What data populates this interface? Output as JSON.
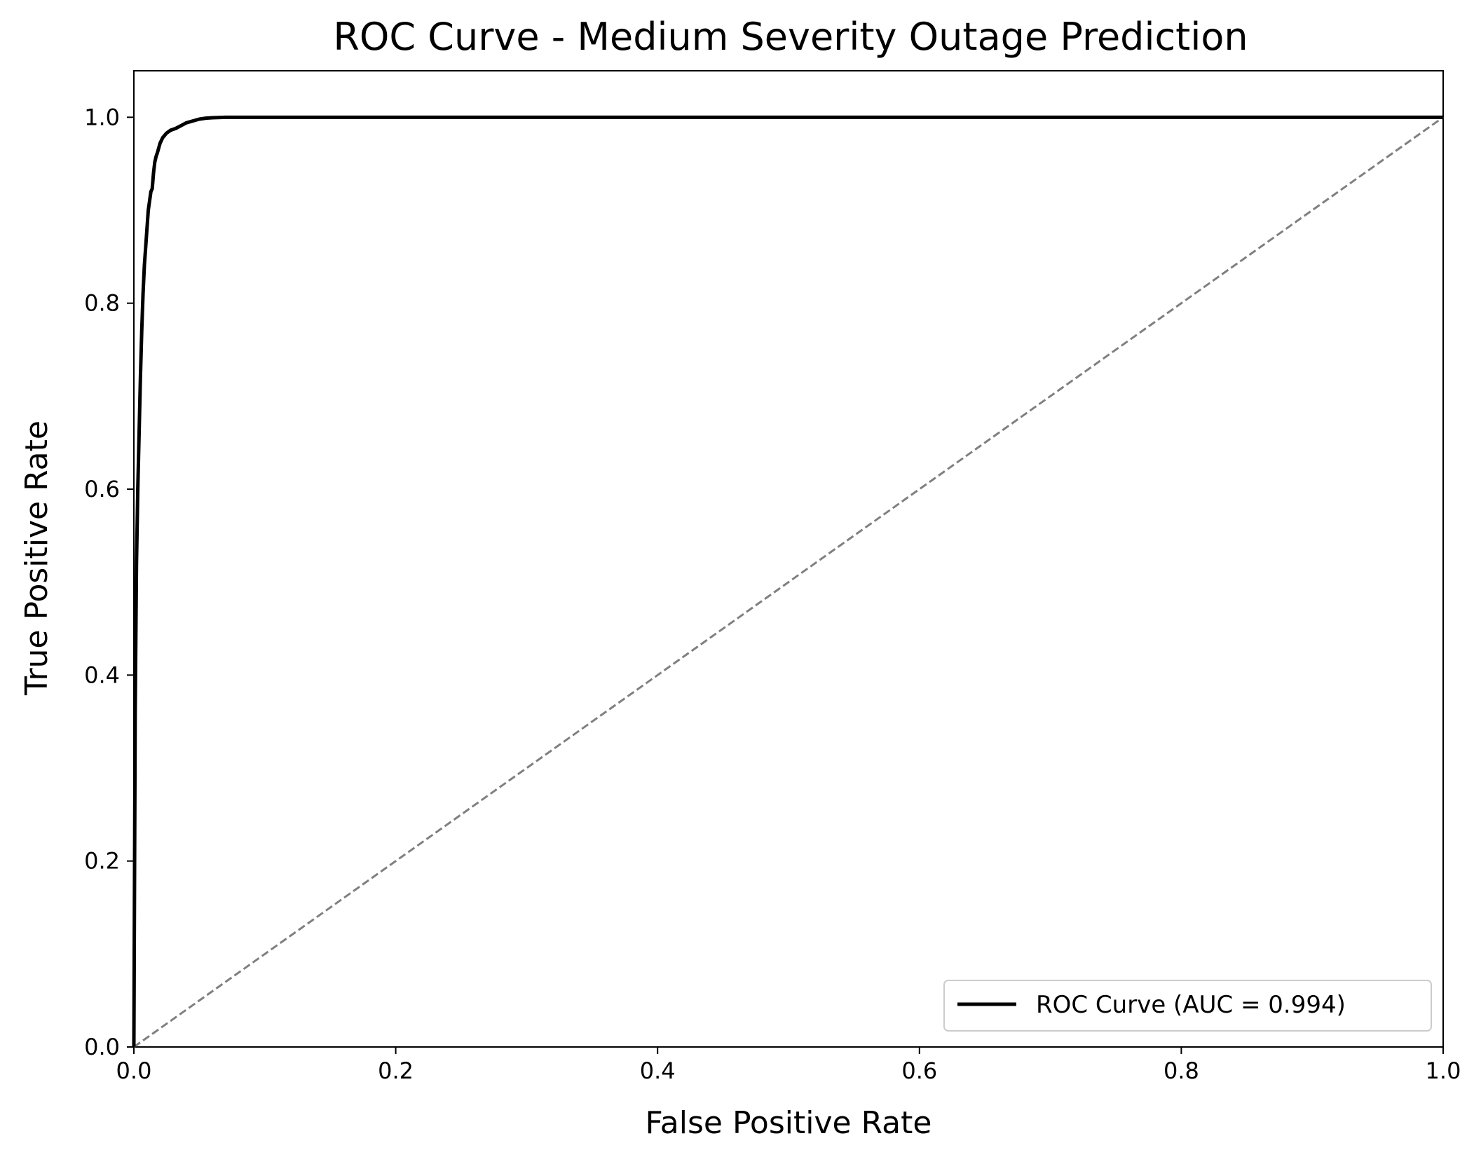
{
  "chart_data": {
    "type": "line",
    "title": "ROC Curve - Medium Severity Outage Prediction",
    "xlabel": "False Positive Rate",
    "ylabel": "True Positive Rate",
    "xlim": [
      0.0,
      1.0
    ],
    "ylim": [
      0.0,
      1.05
    ],
    "x_ticks": [
      "0.0",
      "0.2",
      "0.4",
      "0.6",
      "0.8",
      "1.0"
    ],
    "y_ticks": [
      "0.0",
      "0.2",
      "0.4",
      "0.6",
      "0.8",
      "1.0"
    ],
    "grid": false,
    "legend_position": "lower-right",
    "series": [
      {
        "name": "ROC Curve (AUC = 0.994)",
        "color": "#000000",
        "style": "solid",
        "x": [
          0.0,
          0.001,
          0.002,
          0.003,
          0.004,
          0.005,
          0.006,
          0.007,
          0.008,
          0.009,
          0.01,
          0.011,
          0.012,
          0.013,
          0.014,
          0.015,
          0.016,
          0.017,
          0.018,
          0.02,
          0.022,
          0.025,
          0.028,
          0.032,
          0.036,
          0.04,
          0.045,
          0.05,
          0.055,
          0.06,
          0.07,
          0.08,
          0.1,
          1.0
        ],
        "y": [
          0.0,
          0.36,
          0.52,
          0.6,
          0.66,
          0.72,
          0.77,
          0.81,
          0.84,
          0.86,
          0.88,
          0.9,
          0.91,
          0.92,
          0.923,
          0.94,
          0.952,
          0.958,
          0.962,
          0.972,
          0.978,
          0.983,
          0.986,
          0.988,
          0.991,
          0.994,
          0.996,
          0.998,
          0.999,
          0.9995,
          1.0,
          1.0,
          1.0,
          1.0
        ]
      },
      {
        "name": "",
        "color": "#808080",
        "style": "dashed",
        "x": [
          0.0,
          1.0
        ],
        "y": [
          0.0,
          1.0
        ]
      }
    ],
    "legend": [
      {
        "label": "ROC Curve (AUC = 0.994)",
        "color": "#000000"
      }
    ]
  }
}
